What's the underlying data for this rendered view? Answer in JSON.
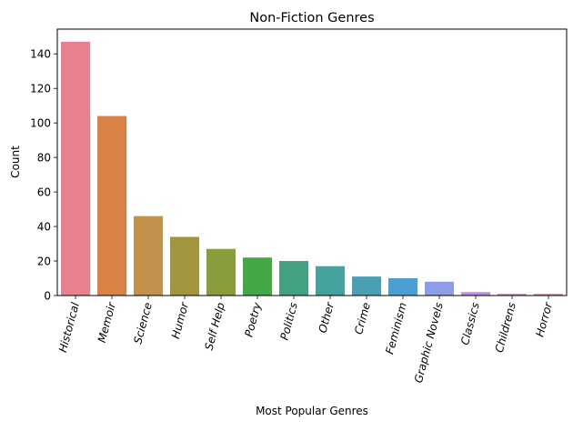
{
  "chart_data": {
    "type": "bar",
    "title": "Non-Fiction Genres",
    "xlabel": "Most Popular Genres",
    "ylabel": "Count",
    "categories": [
      "Historical",
      "Memoir",
      "Science",
      "Humor",
      "Self Help",
      "Poetry",
      "Politics",
      "Other",
      "Crime",
      "Feminism",
      "Graphic Novels",
      "Classics",
      "Childrens",
      "Horror"
    ],
    "values": [
      147,
      104,
      46,
      34,
      27,
      22,
      20,
      17,
      11,
      10,
      8,
      2,
      1,
      1
    ],
    "colors": [
      "#e8808f",
      "#d98146",
      "#c2914c",
      "#a1963f",
      "#8a9d3c",
      "#45a846",
      "#43a080",
      "#45a39d",
      "#4a9fb3",
      "#4b9fd1",
      "#8f9ce8",
      "#c48ee8",
      "#e184d8",
      "#e984b6"
    ],
    "yticks": [
      0,
      20,
      40,
      60,
      80,
      100,
      120,
      140
    ],
    "ylim": [
      0,
      154.35
    ],
    "grid": false,
    "legend": "none"
  }
}
